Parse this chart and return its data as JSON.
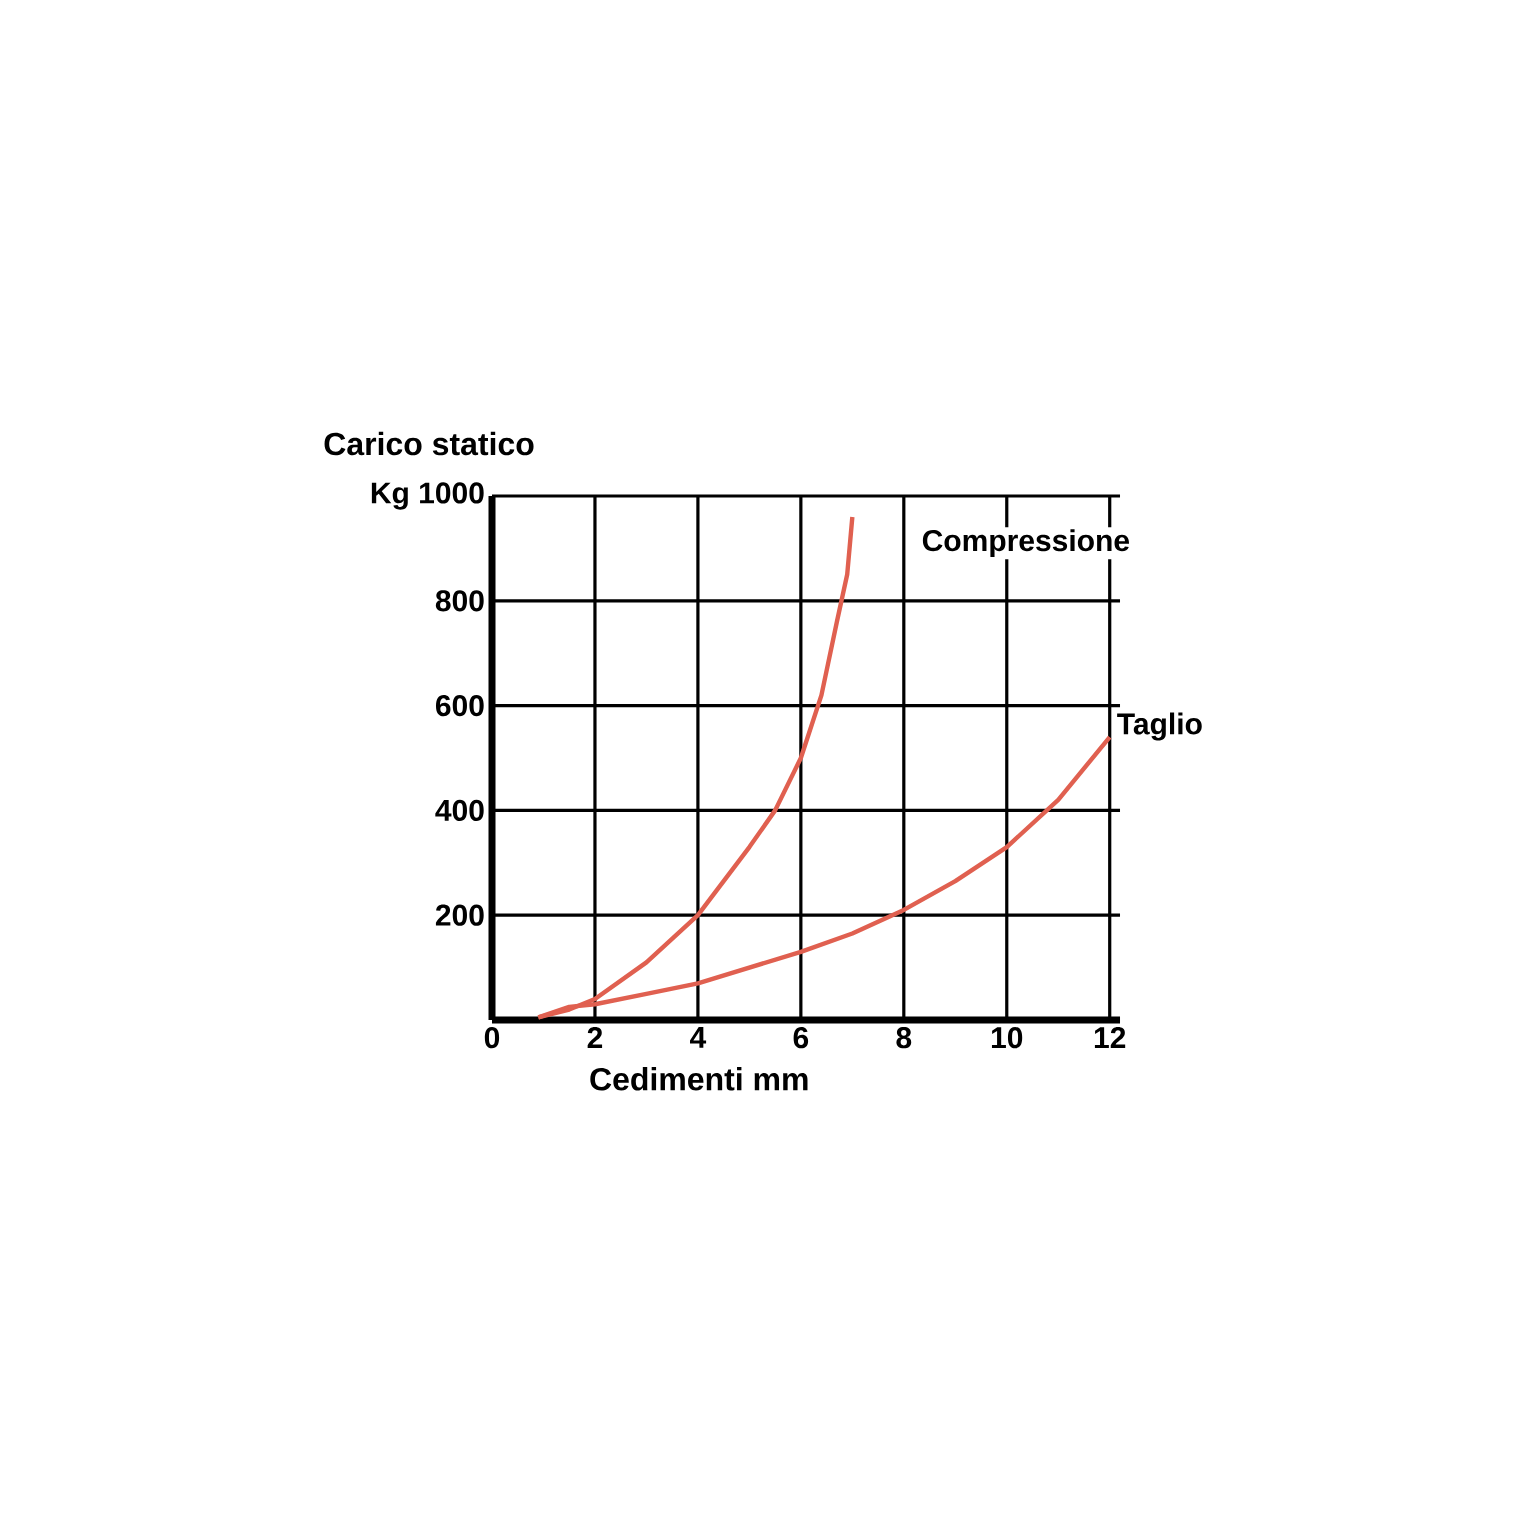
{
  "chart_data": {
    "type": "line",
    "ylabel": "Carico statico",
    "xlabel": "Cedimenti mm",
    "xlim": [
      0,
      12.2
    ],
    "ylim": [
      0,
      1000
    ],
    "xticks": [
      0,
      2,
      4,
      6,
      8,
      10,
      12
    ],
    "yticks": [
      200,
      400,
      600,
      800,
      {
        "value": 1000,
        "label": "Kg 1000"
      }
    ],
    "grid": true,
    "legend": false,
    "marker": "none",
    "line_style": "solid",
    "series": [
      {
        "name": "Compressione",
        "color": "#e06050",
        "x": [
          0.9,
          1.5,
          2,
          3,
          4,
          5,
          5.5,
          6,
          6.4,
          6.7,
          6.9,
          7.0
        ],
        "values": [
          5,
          20,
          40,
          110,
          200,
          330,
          400,
          500,
          620,
          760,
          850,
          960
        ]
      },
      {
        "name": "Taglio",
        "color": "#e06050",
        "x": [
          0.9,
          1.5,
          2,
          3,
          4,
          5,
          6,
          7,
          8,
          9,
          10,
          11,
          12.0
        ],
        "values": [
          5,
          25,
          30,
          50,
          70,
          100,
          130,
          165,
          210,
          265,
          330,
          420,
          540
        ]
      }
    ]
  }
}
